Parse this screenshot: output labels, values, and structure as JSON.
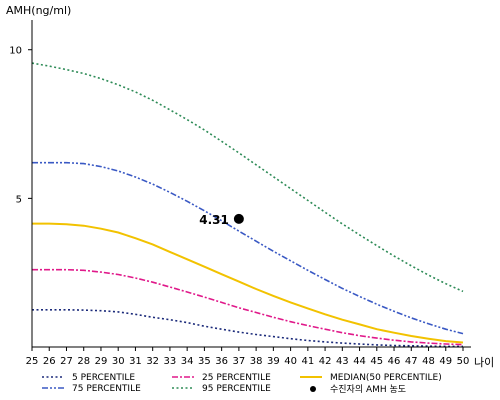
{
  "chart_data": {
    "type": "line",
    "ylabel": "AMH(ng/ml)",
    "xlabel": "나이",
    "xlim": [
      25,
      50
    ],
    "ylim": [
      0,
      11
    ],
    "yticks": [
      5,
      10
    ],
    "x": [
      25,
      26,
      27,
      28,
      29,
      30,
      31,
      32,
      33,
      34,
      35,
      36,
      37,
      38,
      39,
      40,
      41,
      42,
      43,
      44,
      45,
      46,
      47,
      48,
      49,
      50
    ],
    "series": [
      {
        "name": "5 PERCENTILE",
        "color": "#1b2a7a",
        "dash": "dotted",
        "values": [
          1.25,
          1.25,
          1.25,
          1.24,
          1.22,
          1.18,
          1.1,
          1.0,
          0.92,
          0.82,
          0.7,
          0.6,
          0.5,
          0.42,
          0.35,
          0.28,
          0.22,
          0.17,
          0.13,
          0.1,
          0.07,
          0.05,
          0.04,
          0.03,
          0.02,
          0.02
        ]
      },
      {
        "name": "25 PERCENTILE",
        "color": "#e0198a",
        "dash": "dashdot",
        "values": [
          2.6,
          2.6,
          2.6,
          2.58,
          2.52,
          2.44,
          2.32,
          2.18,
          2.02,
          1.85,
          1.68,
          1.5,
          1.32,
          1.16,
          1.0,
          0.85,
          0.72,
          0.6,
          0.48,
          0.38,
          0.3,
          0.23,
          0.17,
          0.13,
          0.1,
          0.08
        ]
      },
      {
        "name": "MEDIAN(50 PERCENTILE)",
        "color": "#f2c200",
        "dash": "solid",
        "values": [
          4.15,
          4.15,
          4.13,
          4.08,
          3.98,
          3.85,
          3.66,
          3.45,
          3.2,
          2.95,
          2.7,
          2.45,
          2.2,
          1.95,
          1.72,
          1.5,
          1.3,
          1.1,
          0.92,
          0.76,
          0.6,
          0.48,
          0.37,
          0.28,
          0.2,
          0.15
        ]
      },
      {
        "name": "75 PERCENTILE",
        "color": "#3a59c4",
        "dash": "dashdotdot",
        "values": [
          6.2,
          6.2,
          6.2,
          6.17,
          6.07,
          5.92,
          5.72,
          5.48,
          5.2,
          4.9,
          4.58,
          4.25,
          3.9,
          3.56,
          3.22,
          2.9,
          2.58,
          2.27,
          1.97,
          1.7,
          1.44,
          1.2,
          0.98,
          0.78,
          0.6,
          0.45
        ]
      },
      {
        "name": "95 PERCENTILE",
        "color": "#2e8b57",
        "dash": "dotted",
        "values": [
          9.55,
          9.45,
          9.33,
          9.2,
          9.03,
          8.82,
          8.58,
          8.3,
          7.98,
          7.65,
          7.3,
          6.92,
          6.53,
          6.13,
          5.73,
          5.33,
          4.93,
          4.53,
          4.14,
          3.77,
          3.41,
          3.06,
          2.73,
          2.42,
          2.13,
          1.87
        ]
      }
    ],
    "point": {
      "name": "수진자의 AMH 농도",
      "x": 37,
      "y": 4.31,
      "label": "4.31"
    },
    "legend_position": "bottom",
    "grid": false
  }
}
